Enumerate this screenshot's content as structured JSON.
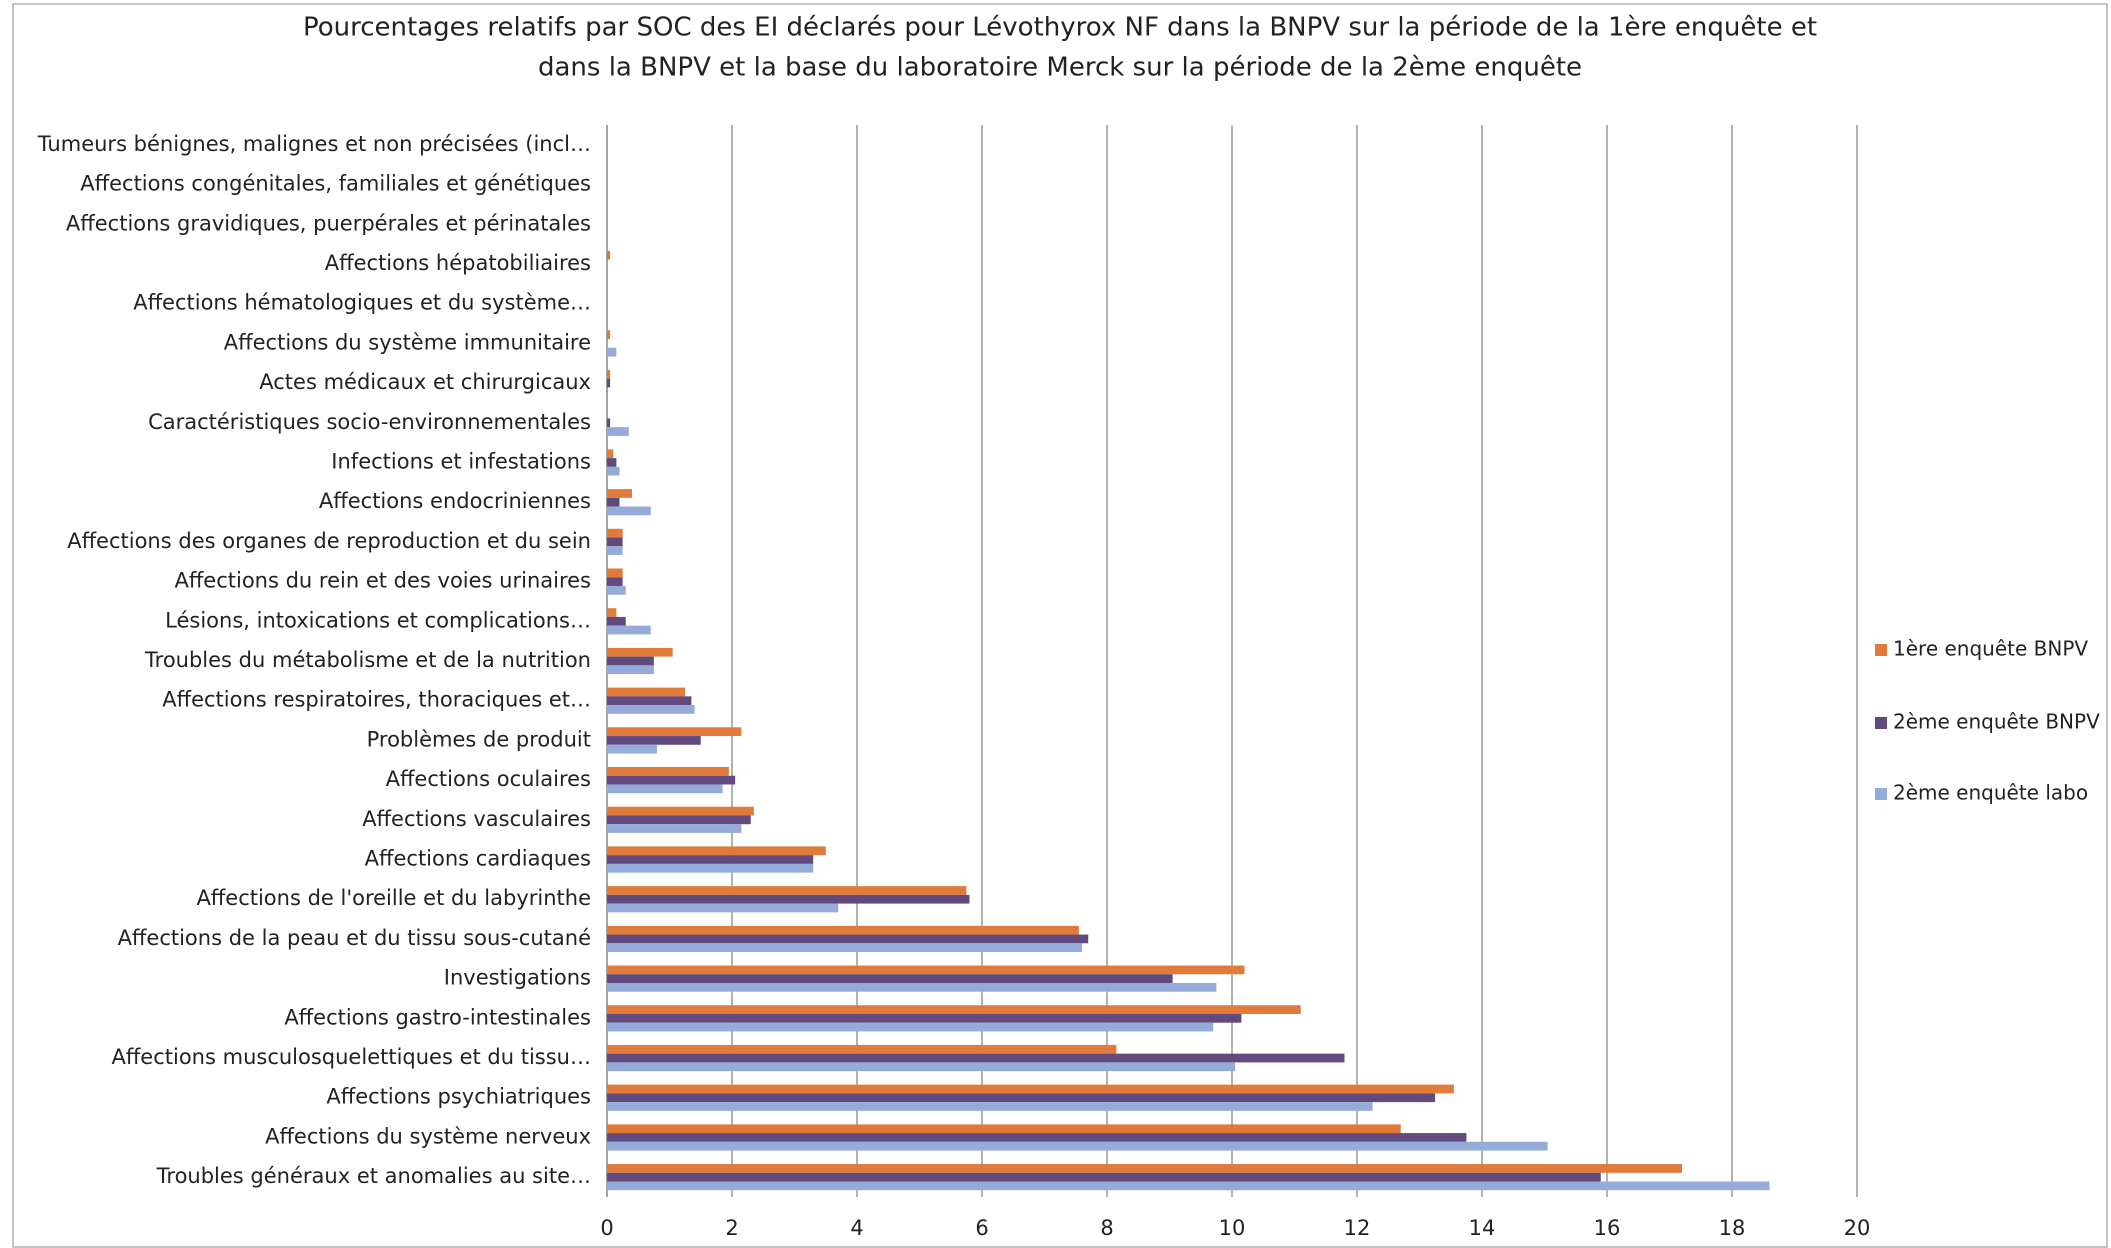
{
  "chart_data": {
    "type": "barh",
    "title": [
      "Pourcentages relatifs par SOC des EI déclarés pour  Lévothyrox NF dans la BNPV sur la période de la 1ère enquête et",
      "dans la BNPV et la base du laboratoire Merck sur la période de la 2ème enquête"
    ],
    "categories": [
      "Tumeurs bénignes, malignes et non précisées (incl…",
      "Affections congénitales, familiales et génétiques",
      "Affections gravidiques, puerpérales et périnatales",
      "Affections hépatobiliaires",
      "Affections hématologiques et du système…",
      "Affections du système immunitaire",
      "Actes médicaux et chirurgicaux",
      "Caractéristiques socio-environnementales",
      "Infections et infestations",
      "Affections endocriniennes",
      "Affections des organes de reproduction et du sein",
      "Affections du rein et des voies urinaires",
      "Lésions, intoxications et complications…",
      "Troubles du métabolisme et de la nutrition",
      "Affections respiratoires, thoraciques et…",
      "Problèmes de produit",
      "Affections oculaires",
      "Affections vasculaires",
      "Affections cardiaques",
      "Affections de l'oreille et du labyrinthe",
      "Affections de la peau et du tissu sous-cutané",
      "Investigations",
      "Affections gastro-intestinales",
      "Affections musculosquelettiques et du tissu…",
      "Affections psychiatriques",
      "Affections du système nerveux",
      "Troubles généraux et anomalies au site…"
    ],
    "series": [
      {
        "name": "1ère enquête BNPV",
        "color": "#e07b39",
        "values": [
          0,
          0,
          0,
          0.05,
          0,
          0.05,
          0.05,
          0,
          0.1,
          0.4,
          0.25,
          0.25,
          0.15,
          1.05,
          1.25,
          2.15,
          1.95,
          2.35,
          3.5,
          5.75,
          7.55,
          10.2,
          11.1,
          8.15,
          13.55,
          12.7,
          17.2
        ]
      },
      {
        "name": "2ème enquête BNPV",
        "color": "#634a7e",
        "values": [
          0,
          0,
          0,
          0,
          0,
          0,
          0.05,
          0.05,
          0.15,
          0.2,
          0.25,
          0.25,
          0.3,
          0.75,
          1.35,
          1.5,
          2.05,
          2.3,
          3.3,
          5.8,
          7.7,
          9.05,
          10.15,
          11.8,
          13.25,
          13.75,
          15.9
        ]
      },
      {
        "name": "2ème enquête labo",
        "color": "#95abda",
        "values": [
          0,
          0,
          0,
          0,
          0,
          0.15,
          0,
          0.35,
          0.2,
          0.7,
          0.25,
          0.3,
          0.7,
          0.75,
          1.4,
          0.8,
          1.85,
          2.15,
          3.3,
          3.7,
          7.6,
          9.75,
          9.7,
          10.05,
          12.25,
          15.05,
          18.6
        ]
      }
    ],
    "xlim": [
      0,
      20
    ],
    "xticks": [
      0,
      2,
      4,
      6,
      8,
      10,
      12,
      14,
      16,
      18,
      20
    ],
    "grid": true,
    "legend": "right"
  }
}
